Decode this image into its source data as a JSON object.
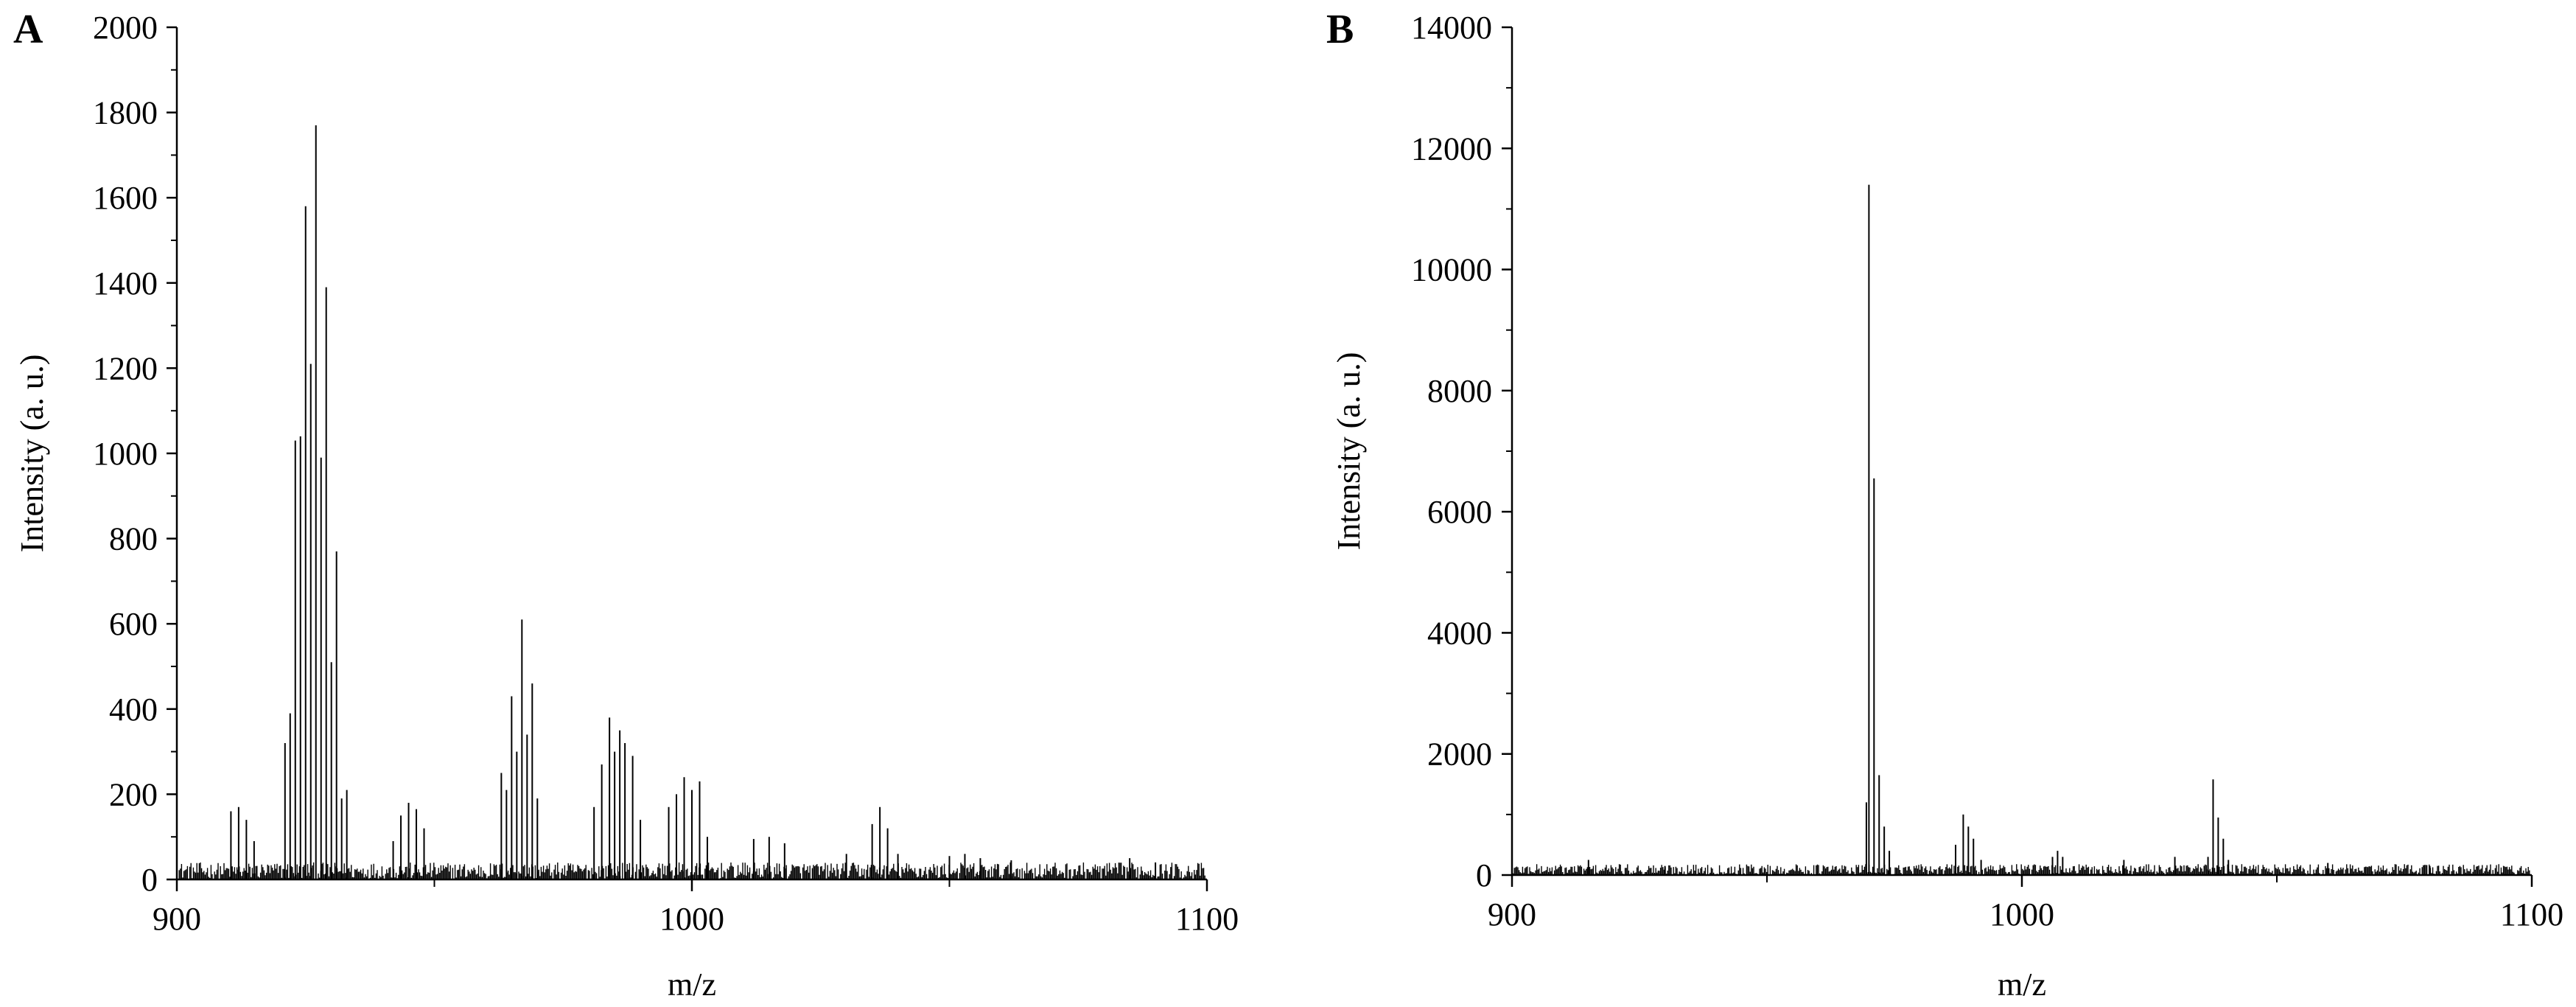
{
  "chart_data": [
    {
      "type": "line",
      "panel_label": "A",
      "xlabel": "m/z",
      "ylabel": "Intensity (a. u.)",
      "xlim": [
        900,
        1100
      ],
      "ylim": [
        0,
        2000
      ],
      "x_ticks": [
        900,
        1000,
        1100
      ],
      "y_ticks": [
        0,
        200,
        400,
        600,
        800,
        1000,
        1200,
        1400,
        1600,
        1800,
        2000
      ],
      "baseline_noise": 40,
      "series": [
        {
          "peaks": [
            [
              910.5,
              160
            ],
            [
              912.0,
              170
            ],
            [
              913.5,
              140
            ],
            [
              915.0,
              90
            ],
            [
              921.0,
              320
            ],
            [
              922.0,
              390
            ],
            [
              923.0,
              1030
            ],
            [
              924.0,
              1040
            ],
            [
              925.0,
              1580
            ],
            [
              926.0,
              1210
            ],
            [
              927.0,
              1770
            ],
            [
              928.0,
              990
            ],
            [
              929.0,
              1390
            ],
            [
              930.0,
              510
            ],
            [
              931.0,
              770
            ],
            [
              932.0,
              190
            ],
            [
              933.0,
              210
            ],
            [
              942.0,
              90
            ],
            [
              943.5,
              150
            ],
            [
              945.0,
              180
            ],
            [
              946.5,
              165
            ],
            [
              948.0,
              120
            ],
            [
              963.0,
              250
            ],
            [
              964.0,
              210
            ],
            [
              965.0,
              430
            ],
            [
              966.0,
              300
            ],
            [
              967.0,
              610
            ],
            [
              968.0,
              340
            ],
            [
              969.0,
              460
            ],
            [
              970.0,
              190
            ],
            [
              981.0,
              170
            ],
            [
              982.5,
              270
            ],
            [
              984.0,
              380
            ],
            [
              985.0,
              300
            ],
            [
              986.0,
              350
            ],
            [
              987.0,
              320
            ],
            [
              988.5,
              290
            ],
            [
              990.0,
              140
            ],
            [
              995.5,
              170
            ],
            [
              997.0,
              200
            ],
            [
              998.5,
              240
            ],
            [
              1000.0,
              210
            ],
            [
              1001.5,
              230
            ],
            [
              1003.0,
              100
            ],
            [
              1012.0,
              95
            ],
            [
              1015.0,
              100
            ],
            [
              1018.0,
              85
            ],
            [
              1030.0,
              60
            ],
            [
              1035.0,
              130
            ],
            [
              1036.5,
              170
            ],
            [
              1038.0,
              120
            ],
            [
              1040.0,
              60
            ],
            [
              1050.0,
              55
            ],
            [
              1053.0,
              60
            ],
            [
              1056.0,
              50
            ],
            [
              1062.0,
              45
            ],
            [
              1085.0,
              50
            ],
            [
              1090.0,
              40
            ]
          ]
        }
      ]
    },
    {
      "type": "line",
      "panel_label": "B",
      "xlabel": "m/z",
      "ylabel": "Intensity (a. u.)",
      "xlim": [
        900,
        1100
      ],
      "ylim": [
        0,
        14000
      ],
      "x_ticks": [
        900,
        1000,
        1100
      ],
      "y_ticks": [
        0,
        2000,
        4000,
        6000,
        8000,
        10000,
        12000,
        14000
      ],
      "baseline_noise": 180,
      "series": [
        {
          "peaks": [
            [
              915.0,
              250
            ],
            [
              930.0,
              150
            ],
            [
              969.5,
              1200
            ],
            [
              970.0,
              11400
            ],
            [
              971.0,
              6550
            ],
            [
              972.0,
              1650
            ],
            [
              973.0,
              800
            ],
            [
              974.0,
              400
            ],
            [
              987.0,
              500
            ],
            [
              988.5,
              1000
            ],
            [
              989.5,
              800
            ],
            [
              990.5,
              600
            ],
            [
              992.0,
              250
            ],
            [
              1006.0,
              300
            ],
            [
              1007.0,
              400
            ],
            [
              1008.0,
              300
            ],
            [
              1020.0,
              250
            ],
            [
              1030.0,
              300
            ],
            [
              1036.5,
              300
            ],
            [
              1037.5,
              1580
            ],
            [
              1038.5,
              950
            ],
            [
              1039.5,
              600
            ],
            [
              1040.5,
              250
            ],
            [
              1060.0,
              200
            ],
            [
              1080.0,
              150
            ]
          ]
        }
      ]
    }
  ]
}
